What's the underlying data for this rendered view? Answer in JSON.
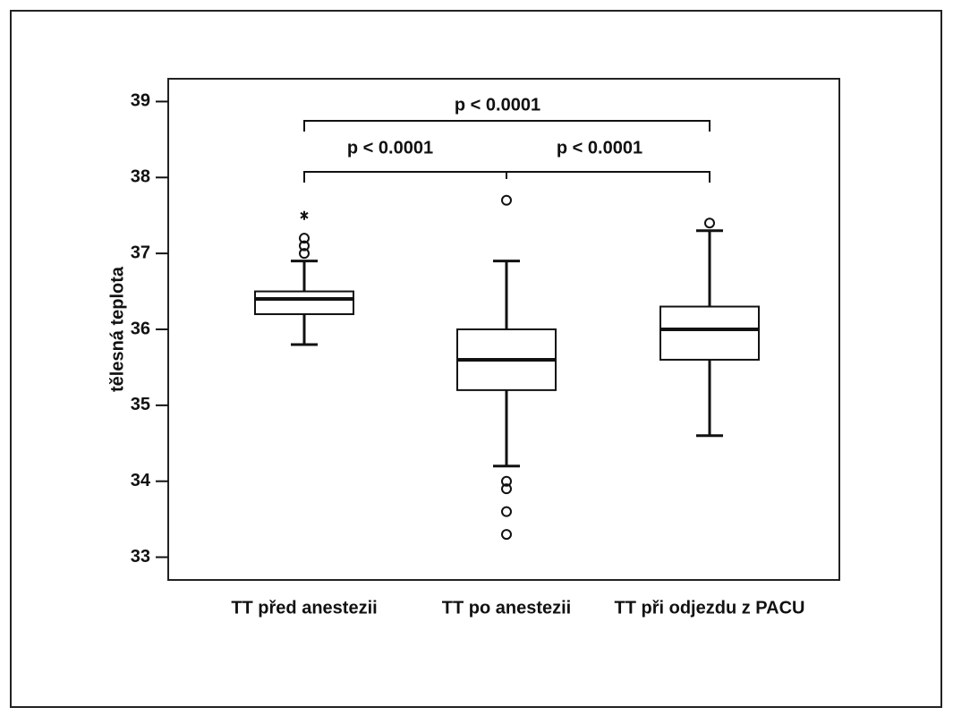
{
  "chart_data": {
    "type": "box",
    "y_label": "tělesná teplota",
    "categories": [
      "TT před anestezii",
      "TT po anestezii",
      "TT při odjezdu z PACU"
    ],
    "boxes": [
      {
        "whislo": 35.8,
        "q1": 36.2,
        "med": 36.4,
        "q3": 36.5,
        "whishi": 36.9,
        "outliers": [
          37.0,
          37.1,
          37.2
        ],
        "extremes": [
          37.5
        ]
      },
      {
        "whislo": 34.2,
        "q1": 35.2,
        "med": 35.6,
        "q3": 36.0,
        "whishi": 36.9,
        "outliers": [
          37.7,
          34.0,
          33.9,
          33.6,
          33.3
        ],
        "extremes": []
      },
      {
        "whislo": 34.6,
        "q1": 35.6,
        "med": 36.0,
        "q3": 36.3,
        "whishi": 37.3,
        "outliers": [
          37.4
        ],
        "extremes": []
      }
    ],
    "annotations": [
      "p < 0.0001",
      "p < 0.0001",
      "p < 0.0001"
    ],
    "color": "#111111",
    "ylim": [
      32.7,
      39.3
    ],
    "yticks": [
      33,
      34,
      35,
      36,
      37,
      38,
      39
    ]
  }
}
